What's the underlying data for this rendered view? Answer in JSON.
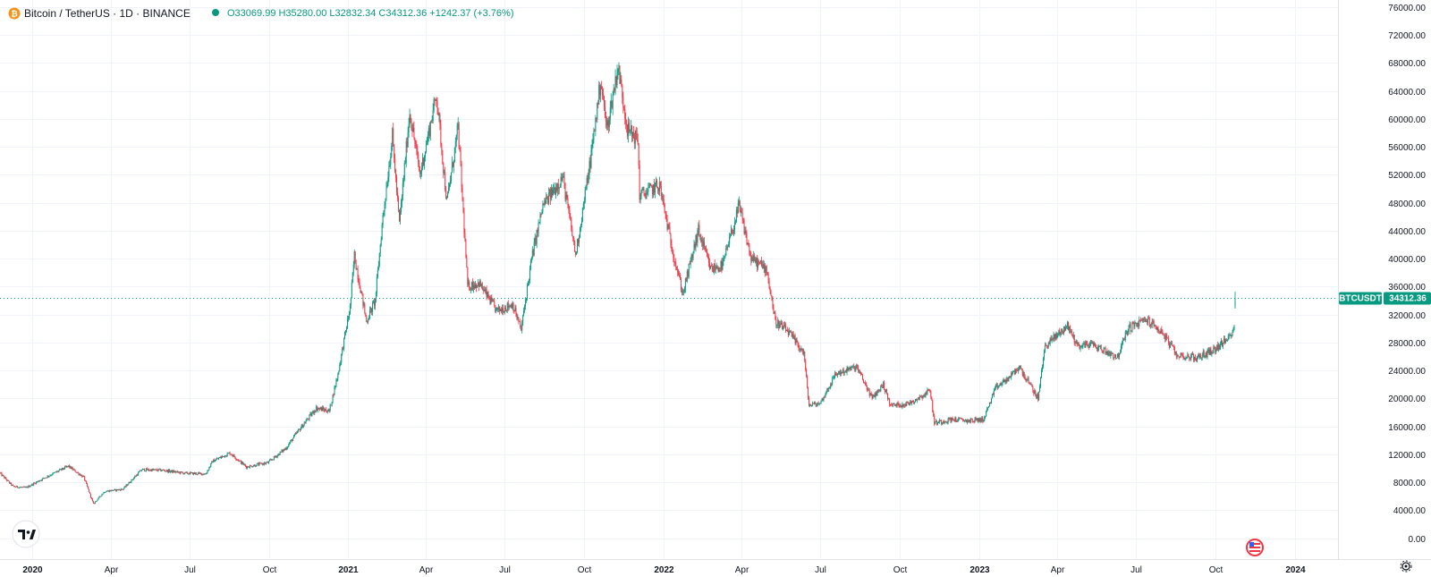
{
  "header": {
    "symbol_title": "Bitcoin / TetherUS · 1D · BINANCE",
    "ohlc": "O33069.99 H35280.00 L32832.34 C34312.36 +1242.37 (+3.76%)"
  },
  "colors": {
    "up": "#089981",
    "down": "#f23645",
    "grid": "#f0f3fa",
    "text": "#131722",
    "accent": "#089981"
  },
  "icons": {
    "symbol": "bitcoin-icon",
    "status": "status-dot-icon",
    "logo": "tradingview-logo-icon",
    "flag": "us-flag-icon",
    "settings": "gear-icon"
  },
  "price_tag": {
    "symbol": "BTCUSDT",
    "price": "34312.36"
  },
  "chart_data": {
    "type": "candlestick",
    "symbol": "BTCUSDT",
    "title": "Bitcoin / TetherUS · 1D · BINANCE",
    "last_price": 34312.36,
    "ylim": [
      -3000,
      77000
    ],
    "xlim": [
      "2019-11-25",
      "2024-02-20"
    ],
    "y_ticks": [
      0,
      4000,
      8000,
      12000,
      16000,
      20000,
      24000,
      28000,
      32000,
      36000,
      40000,
      44000,
      48000,
      52000,
      56000,
      60000,
      64000,
      68000,
      72000,
      76000
    ],
    "y_tick_labels": [
      "0.00",
      "4000.00",
      "8000.00",
      "12000.00",
      "16000.00",
      "20000.00",
      "24000.00",
      "28000.00",
      "32000.00",
      "36000.00",
      "40000.00",
      "44000.00",
      "48000.00",
      "52000.00",
      "56000.00",
      "60000.00",
      "64000.00",
      "68000.00",
      "72000.00",
      "76000.00"
    ],
    "x_ticks": [
      {
        "date": "2020-01-01",
        "label": "2020",
        "bold": true
      },
      {
        "date": "2020-04-01",
        "label": "Apr"
      },
      {
        "date": "2020-07-01",
        "label": "Jul"
      },
      {
        "date": "2020-10-01",
        "label": "Oct"
      },
      {
        "date": "2021-01-01",
        "label": "2021",
        "bold": true
      },
      {
        "date": "2021-04-01",
        "label": "Apr"
      },
      {
        "date": "2021-07-01",
        "label": "Jul"
      },
      {
        "date": "2021-10-01",
        "label": "Oct"
      },
      {
        "date": "2022-01-01",
        "label": "2022",
        "bold": true
      },
      {
        "date": "2022-04-01",
        "label": "Apr"
      },
      {
        "date": "2022-07-01",
        "label": "Jul"
      },
      {
        "date": "2022-10-01",
        "label": "Oct"
      },
      {
        "date": "2023-01-01",
        "label": "2023",
        "bold": true
      },
      {
        "date": "2023-04-01",
        "label": "Apr"
      },
      {
        "date": "2023-07-01",
        "label": "Jul"
      },
      {
        "date": "2023-10-01",
        "label": "Oct"
      },
      {
        "date": "2024-01-01",
        "label": "2024",
        "bold": true
      }
    ],
    "close_path": [
      [
        "2019-11-25",
        9300
      ],
      [
        "2019-12-10",
        7400
      ],
      [
        "2019-12-25",
        7200
      ],
      [
        "2020-01-15",
        8600
      ],
      [
        "2020-02-12",
        10300
      ],
      [
        "2020-03-01",
        8700
      ],
      [
        "2020-03-12",
        4900
      ],
      [
        "2020-03-25",
        6700
      ],
      [
        "2020-04-15",
        7000
      ],
      [
        "2020-05-07",
        9800
      ],
      [
        "2020-06-01",
        9700
      ],
      [
        "2020-06-25",
        9300
      ],
      [
        "2020-07-20",
        9200
      ],
      [
        "2020-07-28",
        11000
      ],
      [
        "2020-08-17",
        12200
      ],
      [
        "2020-09-05",
        10200
      ],
      [
        "2020-09-30",
        10800
      ],
      [
        "2020-10-21",
        12900
      ],
      [
        "2020-11-05",
        15500
      ],
      [
        "2020-11-25",
        18600
      ],
      [
        "2020-12-10",
        18200
      ],
      [
        "2020-12-20",
        23500
      ],
      [
        "2021-01-03",
        33000
      ],
      [
        "2021-01-08",
        40500
      ],
      [
        "2021-01-22",
        31000
      ],
      [
        "2021-02-01",
        34000
      ],
      [
        "2021-02-10",
        46000
      ],
      [
        "2021-02-21",
        57500
      ],
      [
        "2021-03-01",
        45000
      ],
      [
        "2021-03-13",
        61000
      ],
      [
        "2021-03-25",
        52000
      ],
      [
        "2021-04-13",
        63500
      ],
      [
        "2021-04-25",
        48000
      ],
      [
        "2021-05-08",
        58800
      ],
      [
        "2021-05-19",
        36000
      ],
      [
        "2021-06-01",
        36500
      ],
      [
        "2021-06-22",
        32500
      ],
      [
        "2021-07-10",
        33500
      ],
      [
        "2021-07-20",
        29800
      ],
      [
        "2021-08-01",
        40000
      ],
      [
        "2021-08-14",
        47500
      ],
      [
        "2021-09-06",
        51700
      ],
      [
        "2021-09-21",
        40500
      ],
      [
        "2021-10-08",
        54000
      ],
      [
        "2021-10-20",
        65500
      ],
      [
        "2021-10-27",
        58500
      ],
      [
        "2021-11-09",
        67500
      ],
      [
        "2021-11-20",
        58500
      ],
      [
        "2021-12-02",
        57000
      ],
      [
        "2021-12-04",
        49000
      ],
      [
        "2021-12-27",
        50500
      ],
      [
        "2022-01-10",
        41800
      ],
      [
        "2022-01-23",
        35000
      ],
      [
        "2022-02-10",
        44000
      ],
      [
        "2022-02-24",
        38500
      ],
      [
        "2022-03-10",
        39000
      ],
      [
        "2022-03-29",
        47500
      ],
      [
        "2022-04-12",
        40000
      ],
      [
        "2022-04-30",
        38500
      ],
      [
        "2022-05-10",
        31000
      ],
      [
        "2022-05-25",
        29500
      ],
      [
        "2022-06-12",
        26500
      ],
      [
        "2022-06-18",
        19000
      ],
      [
        "2022-07-01",
        19300
      ],
      [
        "2022-07-19",
        23500
      ],
      [
        "2022-08-12",
        24500
      ],
      [
        "2022-08-30",
        20000
      ],
      [
        "2022-09-12",
        22000
      ],
      [
        "2022-09-20",
        19000
      ],
      [
        "2022-10-10",
        19200
      ],
      [
        "2022-10-30",
        20600
      ],
      [
        "2022-11-05",
        21300
      ],
      [
        "2022-11-10",
        16500
      ],
      [
        "2022-12-01",
        17000
      ],
      [
        "2022-12-20",
        16800
      ],
      [
        "2023-01-06",
        17000
      ],
      [
        "2023-01-20",
        21500
      ],
      [
        "2023-02-05",
        23000
      ],
      [
        "2023-02-16",
        24500
      ],
      [
        "2023-03-10",
        20000
      ],
      [
        "2023-03-18",
        27500
      ],
      [
        "2023-04-13",
        30400
      ],
      [
        "2023-04-25",
        27500
      ],
      [
        "2023-05-10",
        27800
      ],
      [
        "2023-06-10",
        25900
      ],
      [
        "2023-06-22",
        30000
      ],
      [
        "2023-07-13",
        31300
      ],
      [
        "2023-08-01",
        29400
      ],
      [
        "2023-08-17",
        26200
      ],
      [
        "2023-09-10",
        25800
      ],
      [
        "2023-09-30",
        27000
      ],
      [
        "2023-10-16",
        28500
      ],
      [
        "2023-10-23",
        30500
      ],
      [
        "2023-10-24",
        34312
      ]
    ]
  }
}
